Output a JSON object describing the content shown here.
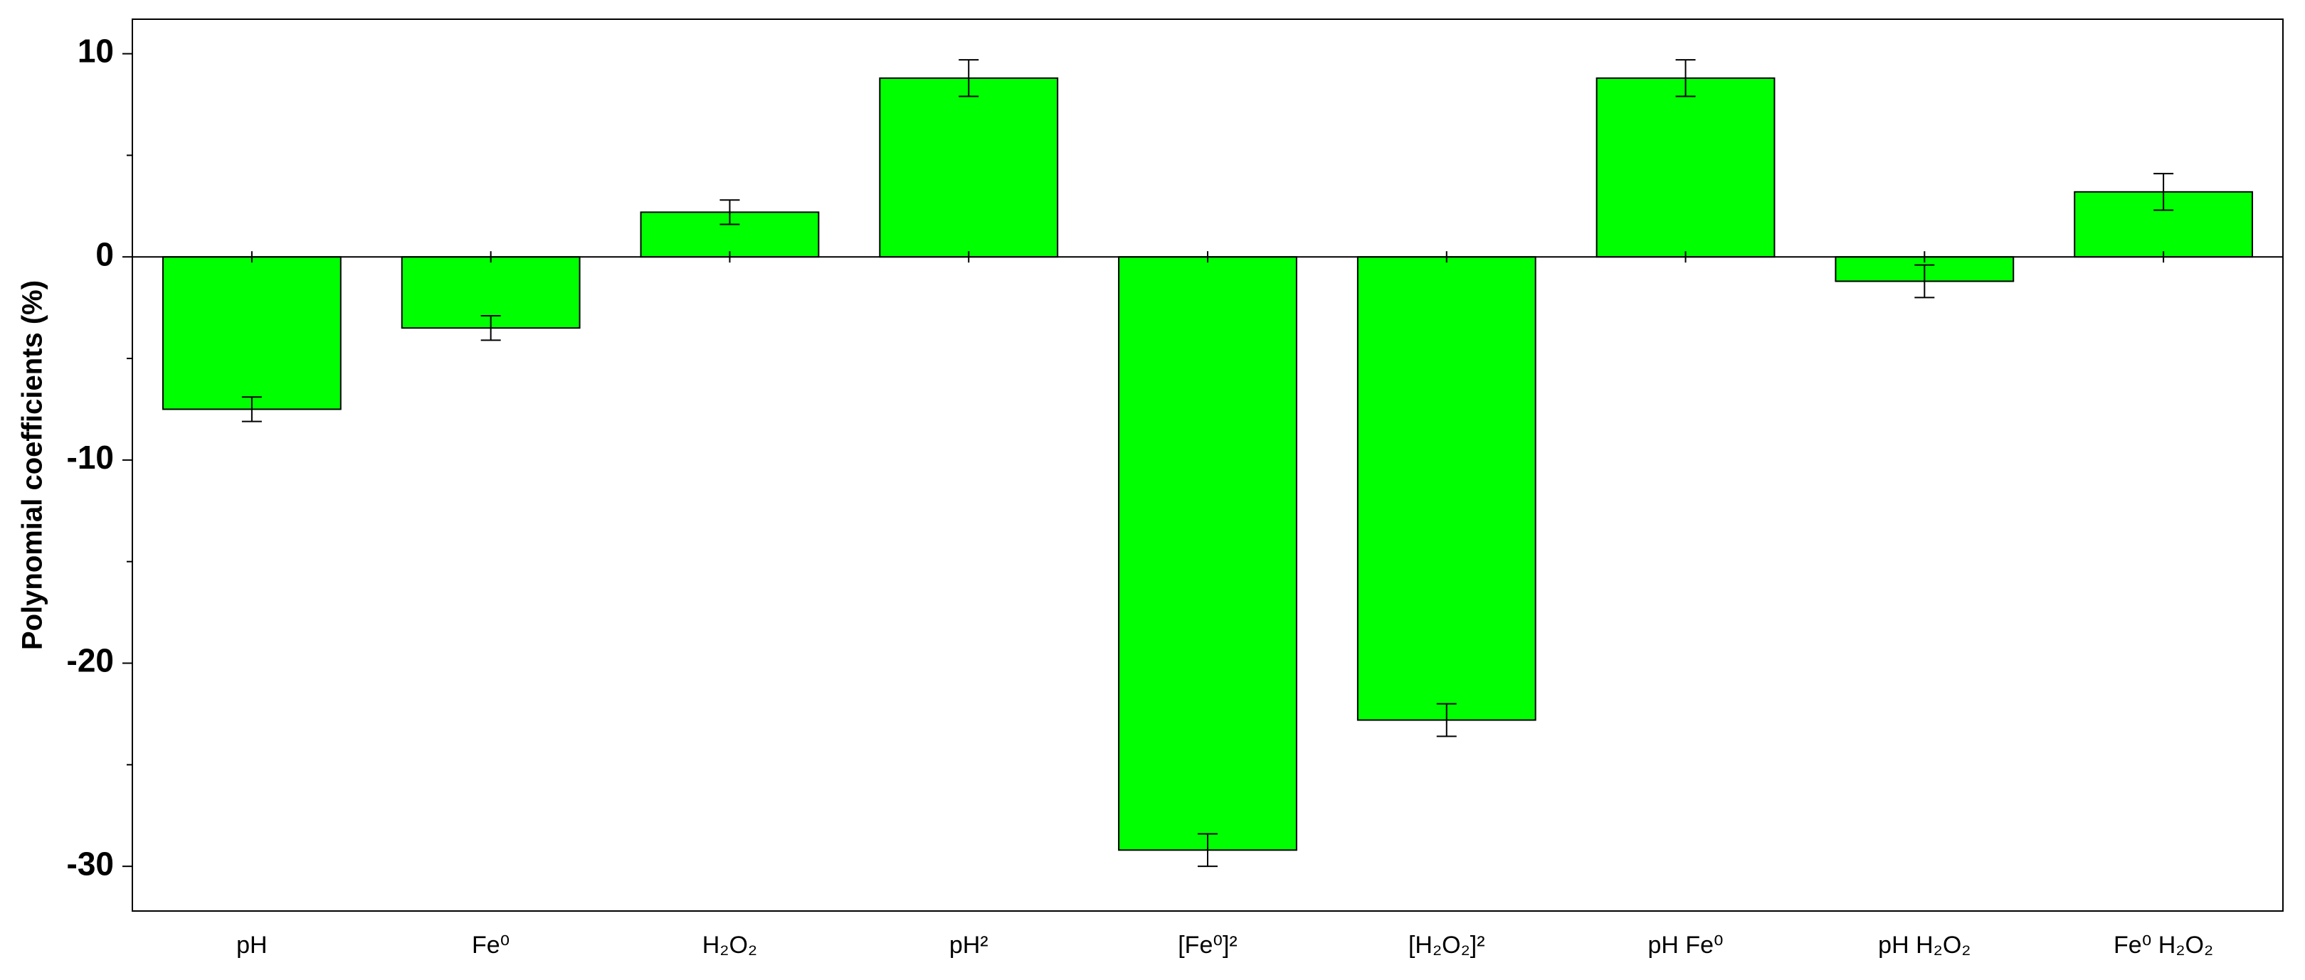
{
  "chart_data": {
    "type": "bar",
    "y_label": "Polynomial coefficients (%)",
    "categories": [
      "pH",
      "Fe⁰",
      "H₂O₂",
      "pH²",
      "[Fe⁰]²",
      "[H₂O₂]²",
      "pH Fe⁰",
      "pH H₂O₂",
      "Fe⁰ H₂O₂"
    ],
    "values": [
      -7.5,
      -3.5,
      2.2,
      8.8,
      -29.2,
      -22.8,
      8.8,
      -1.2,
      3.2
    ],
    "errors": [
      0.6,
      0.6,
      0.6,
      0.9,
      0.8,
      0.8,
      0.9,
      0.8,
      0.9
    ],
    "color": "#00ff00",
    "ylim": [
      -32.2,
      11.7
    ],
    "yticks": [
      -30,
      -20,
      -10,
      0,
      10
    ],
    "minor_yticks": [
      -25,
      -15,
      -5,
      5
    ]
  }
}
